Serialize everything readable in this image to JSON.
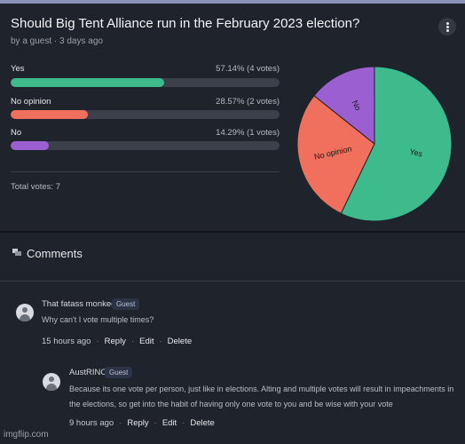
{
  "poll": {
    "title": "Should Big Tent Alliance run in the February 2023 election?",
    "meta": "by a guest · 3 days ago",
    "options": [
      {
        "label": "Yes",
        "result": "57.14% (4 votes)",
        "percent": 57.14,
        "color": "#3dbb8c"
      },
      {
        "label": "No opinion",
        "result": "28.57% (2 votes)",
        "percent": 28.57,
        "color": "#f0705d"
      },
      {
        "label": "No",
        "result": "14.29% (1 votes)",
        "percent": 14.29,
        "color": "#9b5fd1"
      }
    ],
    "total": "Total votes: 7",
    "menu_icon": "kebab-menu-icon"
  },
  "chart_data": {
    "type": "pie",
    "slices": [
      {
        "label": "Yes",
        "value": 57.14,
        "color": "#3dbb8c"
      },
      {
        "label": "No opinion",
        "value": 28.57,
        "color": "#f0705d"
      },
      {
        "label": "No",
        "value": 14.29,
        "color": "#9b5fd1"
      }
    ]
  },
  "comments": {
    "header": "Comments",
    "header_icon": "comments-icon",
    "items": [
      {
        "author": "That fatass monkee",
        "badge": "Guest",
        "text": "Why can't I vote multiple times?",
        "time": "15 hours ago",
        "actions": [
          "Reply",
          "Edit",
          "Delete"
        ]
      },
      {
        "author": "AustRINO",
        "badge": "Guest",
        "text": "Because its one vote per person, just like in elections. Alting and multiple votes will result in impeachments in the elections, so get into the habit of having only one vote to you and be wise with your vote",
        "time": "9 hours ago",
        "actions": [
          "Reply",
          "Edit",
          "Delete"
        ]
      }
    ]
  },
  "watermark": "imgflip.com"
}
